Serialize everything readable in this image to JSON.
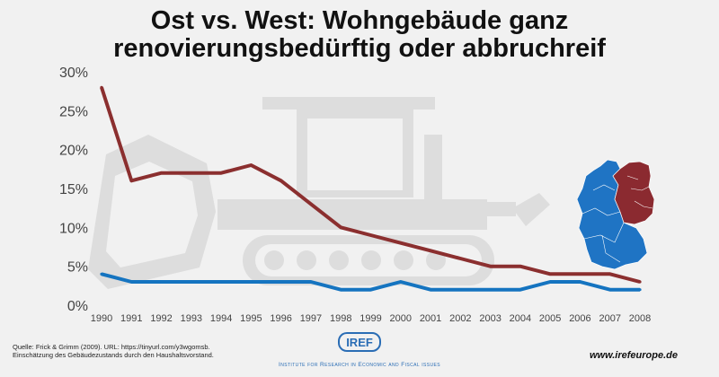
{
  "title_lines": [
    "Ost vs. West: Wohngebäude ganz",
    "renovierungsbedürftig oder abbruchreif"
  ],
  "source_lines": [
    "Quelle: Frick & Grimm (2009). URL: https://tinyurl.com/y3wgomsb.",
    "Einschätzung des Gebäudezustands durch den Haushaltsvorstand."
  ],
  "logo": {
    "text": "IREF",
    "subtitle": "Institute for Research in Economic and Fiscal issues"
  },
  "website": "www.irefeurope.de",
  "icons": [
    "bulldozer-icon",
    "germany-map-icon"
  ],
  "colors": {
    "east": "#8b2f2f",
    "west": "#1574c0",
    "map_east": "#8b2a30",
    "map_west": "#1f74c4",
    "background": "#f1f1f1"
  },
  "chart_data": {
    "type": "line",
    "categories": [
      "1990",
      "1991",
      "1992",
      "1993",
      "1994",
      "1995",
      "1996",
      "1997",
      "1998",
      "1999",
      "2000",
      "2001",
      "2002",
      "2003",
      "2004",
      "2005",
      "2006",
      "2007",
      "2008"
    ],
    "yticks": [
      "0%",
      "5%",
      "10%",
      "15%",
      "20%",
      "25%",
      "30%"
    ],
    "ylim": [
      0,
      30
    ],
    "grid": false,
    "series": [
      {
        "values": [
          28,
          16,
          17,
          17,
          17,
          18,
          16,
          13,
          10,
          9,
          8,
          7,
          6,
          5,
          5,
          4,
          4,
          4,
          3
        ]
      },
      {
        "values": [
          4,
          3,
          3,
          3,
          3,
          3,
          3,
          3,
          2,
          2,
          3,
          2,
          2,
          2,
          2,
          3,
          3,
          2,
          2
        ]
      }
    ]
  }
}
